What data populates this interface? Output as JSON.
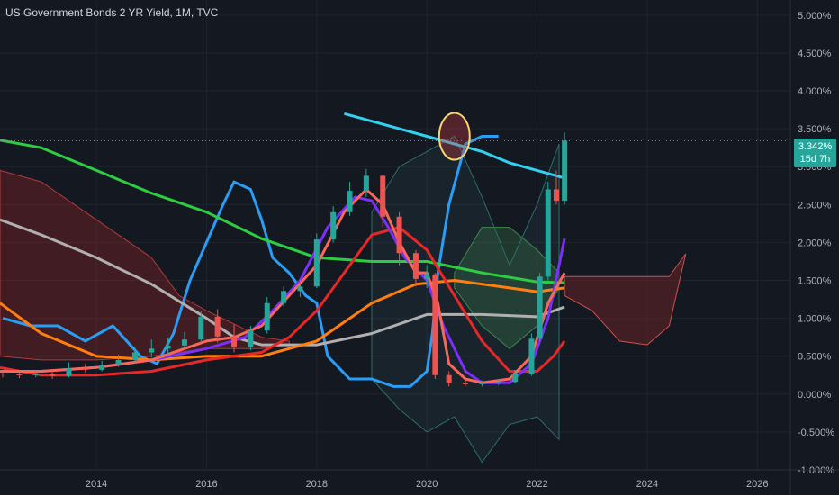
{
  "header": {
    "title": "US Government Bonds 2 YR Yield, 1M, TVC"
  },
  "last_price": {
    "value": "3.342%",
    "countdown": "15d 7h"
  },
  "colors": {
    "background": "#141821",
    "up_candle": "#26a69a",
    "down_candle": "#ef5350",
    "highlight_circle": "#f5d76e",
    "price_tag": "#26a69a"
  },
  "chart_data": {
    "type": "line",
    "title": "US Government Bonds 2 YR Yield, 1M, TVC",
    "xlabel": "",
    "ylabel": "",
    "xlim": [
      2012.25,
      2026.6
    ],
    "ylim": [
      -1.0,
      5.2
    ],
    "y_scale": "linear",
    "yticks": [
      "5.000%",
      "4.500%",
      "4.000%",
      "3.500%",
      "3.000%",
      "2.500%",
      "2.000%",
      "1.500%",
      "1.000%",
      "0.500%",
      "0.000%",
      "-0.500%",
      "-1.000%"
    ],
    "ytick_values": [
      5.0,
      4.5,
      4.0,
      3.5,
      3.0,
      2.5,
      2.0,
      1.5,
      1.0,
      0.5,
      0.0,
      -0.5,
      -1.0
    ],
    "xticks": [
      "2014",
      "2016",
      "2018",
      "2020",
      "2022",
      "2024",
      "2026"
    ],
    "xtick_values": [
      2014,
      2016,
      2018,
      2020,
      2022,
      2024,
      2026
    ],
    "last_value": 3.342,
    "candles": [
      {
        "x": 2012.3,
        "o": 0.27,
        "c": 0.26,
        "h": 0.31,
        "l": 0.22
      },
      {
        "x": 2012.6,
        "o": 0.26,
        "c": 0.25,
        "h": 0.3,
        "l": 0.21
      },
      {
        "x": 2012.9,
        "o": 0.25,
        "c": 0.27,
        "h": 0.31,
        "l": 0.22
      },
      {
        "x": 2013.2,
        "o": 0.27,
        "c": 0.24,
        "h": 0.29,
        "l": 0.2
      },
      {
        "x": 2013.5,
        "o": 0.24,
        "c": 0.34,
        "h": 0.42,
        "l": 0.22
      },
      {
        "x": 2013.8,
        "o": 0.34,
        "c": 0.32,
        "h": 0.4,
        "l": 0.28
      },
      {
        "x": 2014.1,
        "o": 0.32,
        "c": 0.38,
        "h": 0.44,
        "l": 0.3
      },
      {
        "x": 2014.4,
        "o": 0.38,
        "c": 0.45,
        "h": 0.52,
        "l": 0.36
      },
      {
        "x": 2014.7,
        "o": 0.45,
        "c": 0.55,
        "h": 0.62,
        "l": 0.42
      },
      {
        "x": 2015.0,
        "o": 0.55,
        "c": 0.6,
        "h": 0.72,
        "l": 0.48
      },
      {
        "x": 2015.3,
        "o": 0.6,
        "c": 0.64,
        "h": 0.74,
        "l": 0.52
      },
      {
        "x": 2015.6,
        "o": 0.64,
        "c": 0.72,
        "h": 0.82,
        "l": 0.6
      },
      {
        "x": 2015.9,
        "o": 0.72,
        "c": 1.02,
        "h": 1.1,
        "l": 0.68
      },
      {
        "x": 2016.2,
        "o": 1.02,
        "c": 0.76,
        "h": 1.12,
        "l": 0.68
      },
      {
        "x": 2016.5,
        "o": 0.76,
        "c": 0.62,
        "h": 0.92,
        "l": 0.55
      },
      {
        "x": 2016.8,
        "o": 0.62,
        "c": 0.84,
        "h": 0.9,
        "l": 0.58
      },
      {
        "x": 2017.1,
        "o": 0.84,
        "c": 1.2,
        "h": 1.28,
        "l": 0.8
      },
      {
        "x": 2017.4,
        "o": 1.2,
        "c": 1.36,
        "h": 1.42,
        "l": 1.15
      },
      {
        "x": 2017.7,
        "o": 1.36,
        "c": 1.42,
        "h": 1.52,
        "l": 1.28
      },
      {
        "x": 2018.0,
        "o": 1.42,
        "c": 2.04,
        "h": 2.12,
        "l": 1.4
      },
      {
        "x": 2018.3,
        "o": 2.04,
        "c": 2.4,
        "h": 2.48,
        "l": 2.0
      },
      {
        "x": 2018.6,
        "o": 2.4,
        "c": 2.68,
        "h": 2.8,
        "l": 2.35
      },
      {
        "x": 2018.9,
        "o": 2.68,
        "c": 2.88,
        "h": 2.97,
        "l": 2.6
      },
      {
        "x": 2019.2,
        "o": 2.88,
        "c": 2.34,
        "h": 2.9,
        "l": 2.2
      },
      {
        "x": 2019.5,
        "o": 2.34,
        "c": 1.86,
        "h": 2.4,
        "l": 1.7
      },
      {
        "x": 2019.8,
        "o": 1.86,
        "c": 1.52,
        "h": 1.9,
        "l": 1.42
      },
      {
        "x": 2020.0,
        "o": 1.52,
        "c": 1.58,
        "h": 1.7,
        "l": 1.4
      },
      {
        "x": 2020.15,
        "o": 1.58,
        "c": 0.25,
        "h": 1.6,
        "l": 0.2
      },
      {
        "x": 2020.4,
        "o": 0.25,
        "c": 0.15,
        "h": 0.3,
        "l": 0.1
      },
      {
        "x": 2020.7,
        "o": 0.15,
        "c": 0.13,
        "h": 0.2,
        "l": 0.1
      },
      {
        "x": 2021.0,
        "o": 0.13,
        "c": 0.14,
        "h": 0.18,
        "l": 0.1
      },
      {
        "x": 2021.3,
        "o": 0.14,
        "c": 0.16,
        "h": 0.2,
        "l": 0.12
      },
      {
        "x": 2021.6,
        "o": 0.16,
        "c": 0.26,
        "h": 0.32,
        "l": 0.14
      },
      {
        "x": 2021.9,
        "o": 0.26,
        "c": 0.73,
        "h": 0.8,
        "l": 0.24
      },
      {
        "x": 2022.05,
        "o": 0.73,
        "c": 1.55,
        "h": 1.6,
        "l": 0.7
      },
      {
        "x": 2022.2,
        "o": 1.55,
        "c": 2.7,
        "h": 2.8,
        "l": 1.5
      },
      {
        "x": 2022.35,
        "o": 2.7,
        "c": 2.55,
        "h": 2.95,
        "l": 2.5
      },
      {
        "x": 2022.5,
        "o": 2.55,
        "c": 3.342,
        "h": 3.45,
        "l": 2.5
      }
    ],
    "series": [
      {
        "color": "#2a9df4",
        "x": [
          2012.3,
          2012.8,
          2013.3,
          2013.8,
          2014.3,
          2014.8,
          2015.1,
          2015.4,
          2015.7,
          2016.0,
          2016.3,
          2016.5,
          2016.8,
          2017.0,
          2017.2,
          2017.5,
          2017.8,
          2018.0,
          2018.2,
          2018.6,
          2019.0,
          2019.4,
          2019.7,
          2020.0,
          2020.1,
          2020.2,
          2020.4,
          2020.7,
          2021.0,
          2021.3
        ],
        "y": [
          1.0,
          0.9,
          0.9,
          0.7,
          0.9,
          0.5,
          0.4,
          0.8,
          1.5,
          2.0,
          2.5,
          2.8,
          2.7,
          2.3,
          1.8,
          1.6,
          1.3,
          1.2,
          0.5,
          0.2,
          0.2,
          0.1,
          0.1,
          0.3,
          0.8,
          1.6,
          2.5,
          3.3,
          3.4,
          3.4
        ]
      },
      {
        "color": "#33d1f0",
        "x": [
          2018.5,
          2019.0,
          2019.5,
          2020.0,
          2020.5,
          2021.0,
          2021.5,
          2022.0,
          2022.5
        ],
        "y": [
          3.7,
          3.6,
          3.5,
          3.4,
          3.3,
          3.2,
          3.05,
          2.95,
          2.85
        ]
      },
      {
        "color": "#2ecc40",
        "x": [
          2012.25,
          2013.0,
          2014.0,
          2015.0,
          2016.0,
          2017.0,
          2018.0,
          2019.0,
          2020.0,
          2021.0,
          2022.0,
          2022.5
        ],
        "y": [
          3.35,
          3.25,
          2.95,
          2.65,
          2.4,
          2.05,
          1.8,
          1.75,
          1.75,
          1.6,
          1.48,
          1.47
        ]
      },
      {
        "color": "#b0b0b0",
        "x": [
          2012.25,
          2013.0,
          2014.0,
          2015.0,
          2016.0,
          2016.5,
          2017.0,
          2018.0,
          2019.0,
          2020.0,
          2021.0,
          2022.0,
          2022.5
        ],
        "y": [
          2.3,
          2.1,
          1.8,
          1.45,
          1.0,
          0.75,
          0.65,
          0.65,
          0.8,
          1.05,
          1.05,
          1.02,
          1.15
        ]
      },
      {
        "color": "#ff7f0e",
        "x": [
          2012.25,
          2013.0,
          2014.0,
          2015.0,
          2016.0,
          2017.0,
          2018.0,
          2019.0,
          2019.8,
          2020.5,
          2021.0,
          2021.5,
          2022.0,
          2022.5
        ],
        "y": [
          1.2,
          0.8,
          0.5,
          0.45,
          0.5,
          0.5,
          0.7,
          1.2,
          1.45,
          1.5,
          1.45,
          1.4,
          1.35,
          1.4
        ]
      },
      {
        "color": "#e62828",
        "x": [
          2012.25,
          2013.0,
          2014.0,
          2015.0,
          2016.0,
          2017.0,
          2017.5,
          2018.0,
          2018.5,
          2019.0,
          2019.5,
          2020.0,
          2020.5,
          2021.0,
          2021.5,
          2022.0,
          2022.3,
          2022.5
        ],
        "y": [
          0.35,
          0.25,
          0.25,
          0.3,
          0.45,
          0.55,
          0.75,
          1.1,
          1.6,
          2.1,
          2.2,
          1.9,
          1.3,
          0.7,
          0.3,
          0.3,
          0.5,
          0.7
        ]
      },
      {
        "color": "#7b2ff7",
        "x": [
          2012.25,
          2013.0,
          2014.0,
          2015.0,
          2016.0,
          2016.7,
          2017.2,
          2017.7,
          2018.2,
          2018.7,
          2019.0,
          2019.3,
          2019.6,
          2020.0,
          2020.3,
          2020.7,
          2021.0,
          2021.5,
          2021.9,
          2022.2,
          2022.5
        ],
        "y": [
          0.3,
          0.3,
          0.35,
          0.45,
          0.6,
          0.75,
          1.1,
          1.5,
          2.2,
          2.6,
          2.55,
          2.2,
          1.8,
          1.5,
          0.9,
          0.3,
          0.15,
          0.15,
          0.4,
          1.0,
          2.05
        ]
      },
      {
        "color": "#f7685b",
        "x": [
          2012.25,
          2013.0,
          2014.0,
          2015.0,
          2016.0,
          2016.5,
          2017.0,
          2017.5,
          2018.0,
          2018.5,
          2018.9,
          2019.2,
          2019.5,
          2019.8,
          2020.0,
          2020.2,
          2020.4,
          2020.7,
          2021.0,
          2021.5,
          2021.9,
          2022.2,
          2022.5
        ],
        "y": [
          0.3,
          0.3,
          0.35,
          0.45,
          0.7,
          0.75,
          0.9,
          1.3,
          1.7,
          2.4,
          2.7,
          2.5,
          2.0,
          1.6,
          1.6,
          1.2,
          0.4,
          0.2,
          0.15,
          0.2,
          0.5,
          1.2,
          1.6
        ]
      }
    ]
  }
}
